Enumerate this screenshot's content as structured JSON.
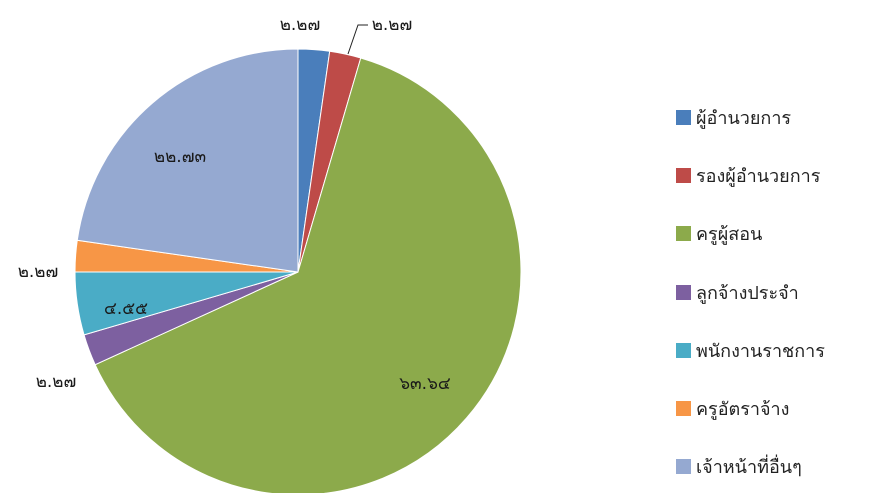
{
  "chart_data": {
    "type": "pie",
    "categories": [
      "ผู้อำนวยการ",
      "รองผู้อำนวยการ",
      "ครูผู้สอน",
      "ลูกจ้างประจำ",
      "พนักงานราชการ",
      "ครูอัตราจ้าง",
      "เจ้าหน้าที่อื่นๆ"
    ],
    "values": [
      2.27,
      2.27,
      63.64,
      2.27,
      4.55,
      2.27,
      22.73
    ],
    "data_labels": [
      "๒.๒๗",
      "๒.๒๗",
      "๖๓.๖๔",
      "๒.๒๗",
      "๔.๕๕",
      "๒.๒๗",
      "๒๒.๗๓"
    ],
    "colors": [
      "#4a7ebb",
      "#be4b48",
      "#8caa4b",
      "#7d60a0",
      "#4aacc6",
      "#f79646",
      "#95a9d1"
    ],
    "legend_position": "right",
    "start_angle": "12 o'clock",
    "direction": "clockwise"
  }
}
